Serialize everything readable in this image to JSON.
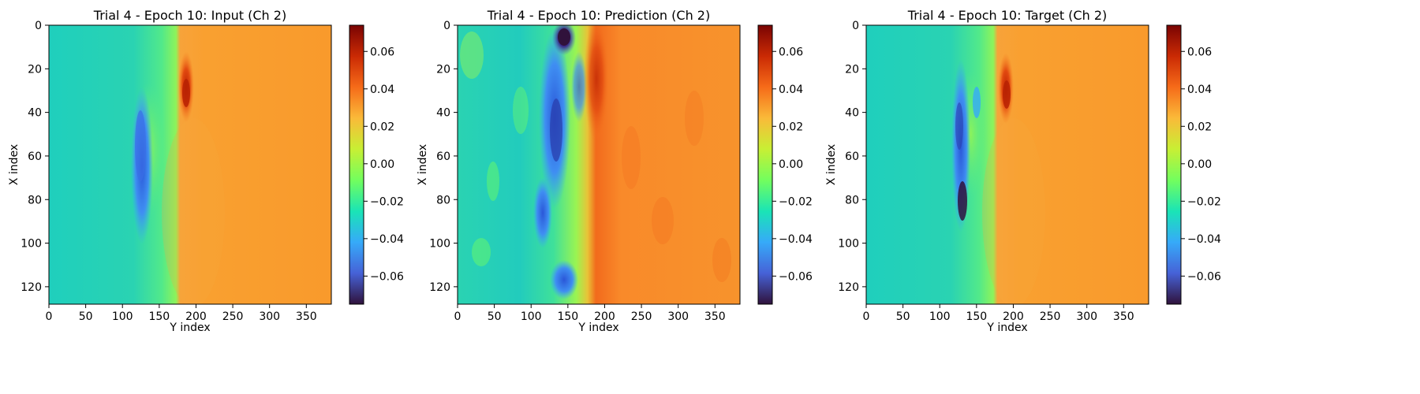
{
  "chart_data": [
    {
      "type": "heatmap",
      "title": "Trial 4 - Epoch 10: Input (Ch 2)",
      "xlabel": "Y index",
      "ylabel": "X index",
      "xlim": [
        0,
        384
      ],
      "ylim": [
        128,
        0
      ],
      "x_ticks": [
        "0",
        "50",
        "100",
        "150",
        "200",
        "250",
        "300",
        "350"
      ],
      "y_ticks": [
        "0",
        "20",
        "40",
        "60",
        "80",
        "100",
        "120"
      ],
      "colorbar": {
        "range": [
          -0.075,
          0.074
        ],
        "ticks": [
          "0.06",
          "0.04",
          "0.02",
          "0.00",
          "−0.02",
          "−0.04",
          "−0.06"
        ]
      }
    },
    {
      "type": "heatmap",
      "title": "Trial 4 - Epoch 10: Prediction (Ch 2)",
      "xlabel": "Y index",
      "ylabel": "X index",
      "xlim": [
        0,
        384
      ],
      "ylim": [
        128,
        0
      ],
      "x_ticks": [
        "0",
        "50",
        "100",
        "150",
        "200",
        "250",
        "300",
        "350"
      ],
      "y_ticks": [
        "0",
        "20",
        "40",
        "60",
        "80",
        "100",
        "120"
      ],
      "colorbar": {
        "range": [
          -0.075,
          0.074
        ],
        "ticks": [
          "0.06",
          "0.04",
          "0.02",
          "0.00",
          "−0.02",
          "−0.04",
          "−0.06"
        ]
      }
    },
    {
      "type": "heatmap",
      "title": "Trial 4 - Epoch 10: Target (Ch 2)",
      "xlabel": "Y index",
      "ylabel": "X index",
      "xlim": [
        0,
        384
      ],
      "ylim": [
        128,
        0
      ],
      "x_ticks": [
        "0",
        "50",
        "100",
        "150",
        "200",
        "250",
        "300",
        "350"
      ],
      "y_ticks": [
        "0",
        "20",
        "40",
        "60",
        "80",
        "100",
        "120"
      ],
      "colorbar": {
        "range": [
          -0.075,
          0.074
        ],
        "ticks": [
          "0.06",
          "0.04",
          "0.02",
          "0.00",
          "−0.02",
          "−0.04",
          "−0.06"
        ]
      }
    }
  ],
  "colors": {
    "colormap": "turbo",
    "stops": [
      "#30123b",
      "#4662d7",
      "#36aaf9",
      "#1ae4b6",
      "#72fe5e",
      "#c8ef34",
      "#faba39",
      "#f66b19",
      "#ca2a04",
      "#7a0403"
    ],
    "background": "#ffffff"
  }
}
